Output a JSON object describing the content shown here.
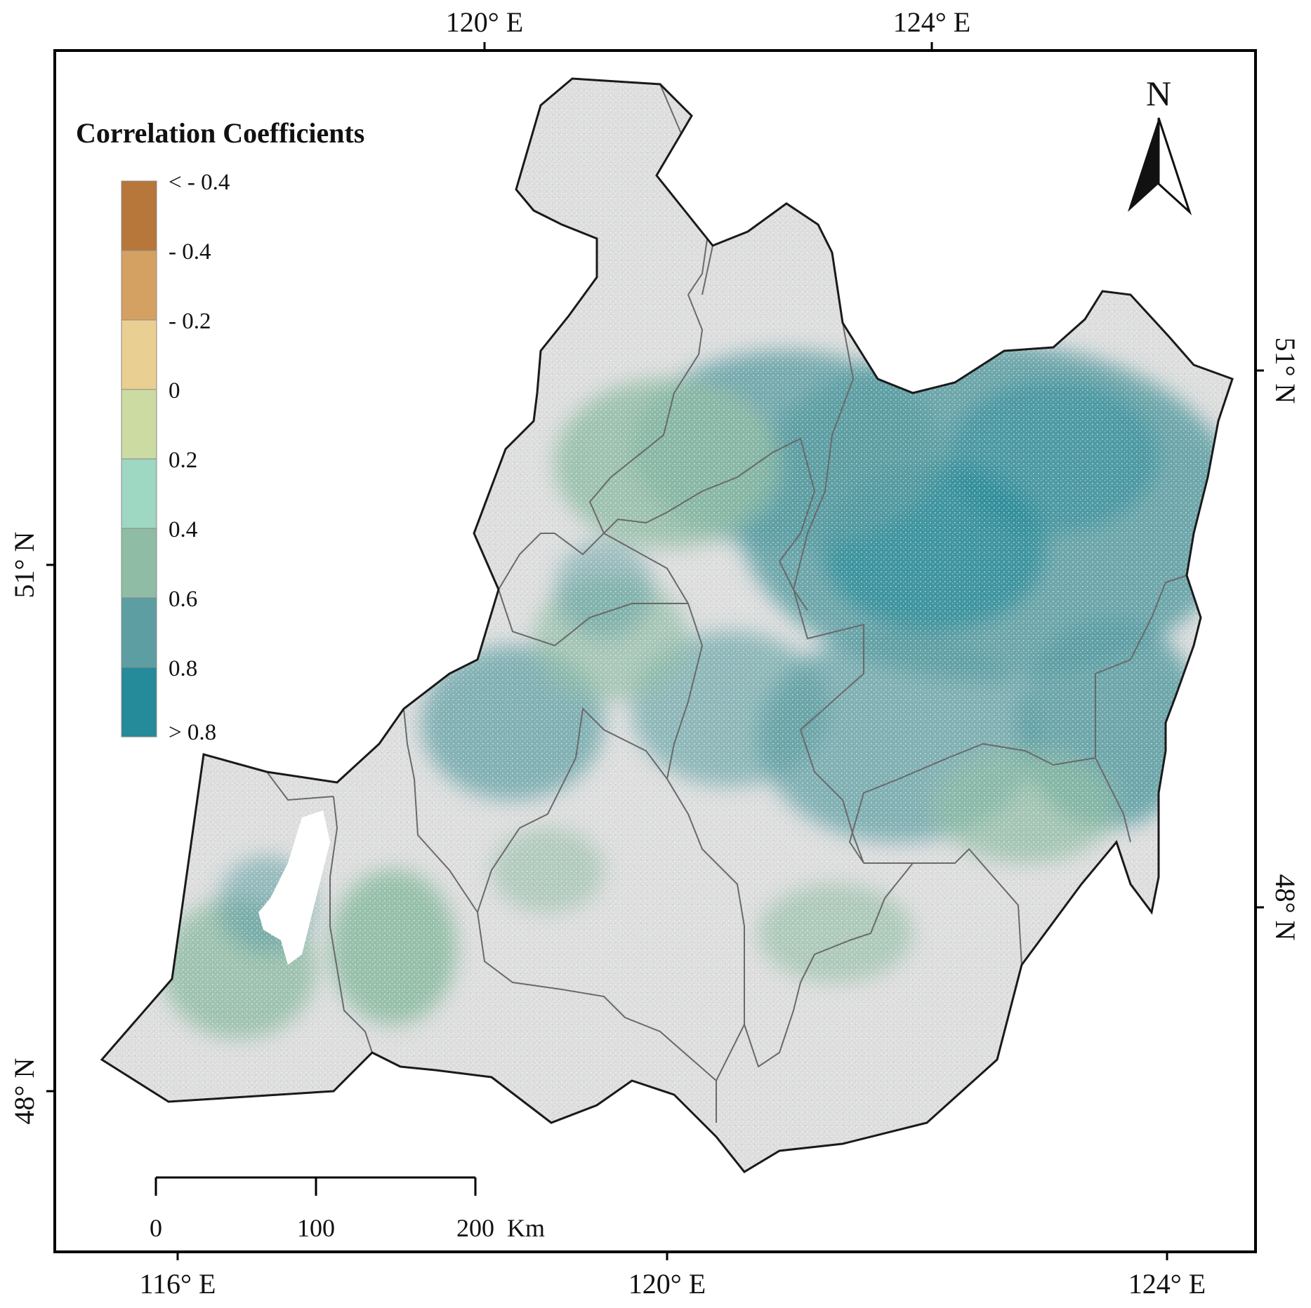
{
  "coords": {
    "top": [
      "120° E",
      "124° E"
    ],
    "bottom": [
      "116° E",
      "120° E",
      "124° E"
    ],
    "left": [
      "51° N",
      "48° N"
    ],
    "right": [
      "51° N",
      "48° N"
    ]
  },
  "north_arrow": {
    "label": "N"
  },
  "legend": {
    "title": "Correlation Coefficients",
    "classes": [
      {
        "label": "< - 0.4",
        "color": "#b7763a"
      },
      {
        "label": "- 0.4",
        "color": "#d4a162"
      },
      {
        "label": "- 0.2",
        "color": "#eacf92"
      },
      {
        "label": "0",
        "color": "#cbdba2"
      },
      {
        "label": "0.2",
        "color": "#9ed7c2"
      },
      {
        "label": "0.4",
        "color": "#8fbca4"
      },
      {
        "label": "0.6",
        "color": "#5c9ea2"
      },
      {
        "label": "0.8",
        "color": "#258a99"
      }
    ],
    "last_label": "> 0.8"
  },
  "scale_bar": {
    "ticks": [
      "0",
      "100"
    ],
    "end_label": "200",
    "unit": "Km"
  },
  "colors": {
    "background": "#dedede",
    "outline": "#1a1a1a",
    "inner_boundary": "#6a6a6a",
    "lake": "#ffffff"
  }
}
